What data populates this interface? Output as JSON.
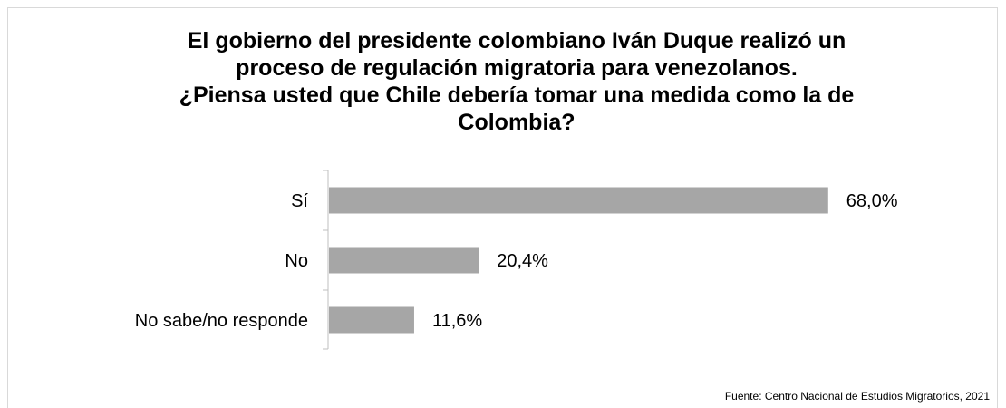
{
  "chart_data": {
    "type": "bar",
    "orientation": "horizontal",
    "title_lines": [
      "El gobierno del presidente colombiano Iván Duque realizó un",
      "proceso de regulación migratoria para venezolanos.",
      "¿Piensa usted que Chile debería tomar una medida como la de",
      "Colombia?"
    ],
    "categories": [
      "Sí",
      "No",
      "No sabe/no responde"
    ],
    "values": [
      68.0,
      20.4,
      11.6
    ],
    "data_labels": [
      "68,0%",
      "20,4%",
      "11,6%"
    ],
    "xlim": [
      0,
      100
    ],
    "grid": false,
    "legend": "none",
    "bar_color": "#a6a6a6"
  },
  "source": "Fuente: Centro Nacional de Estudios Migratorios, 2021"
}
